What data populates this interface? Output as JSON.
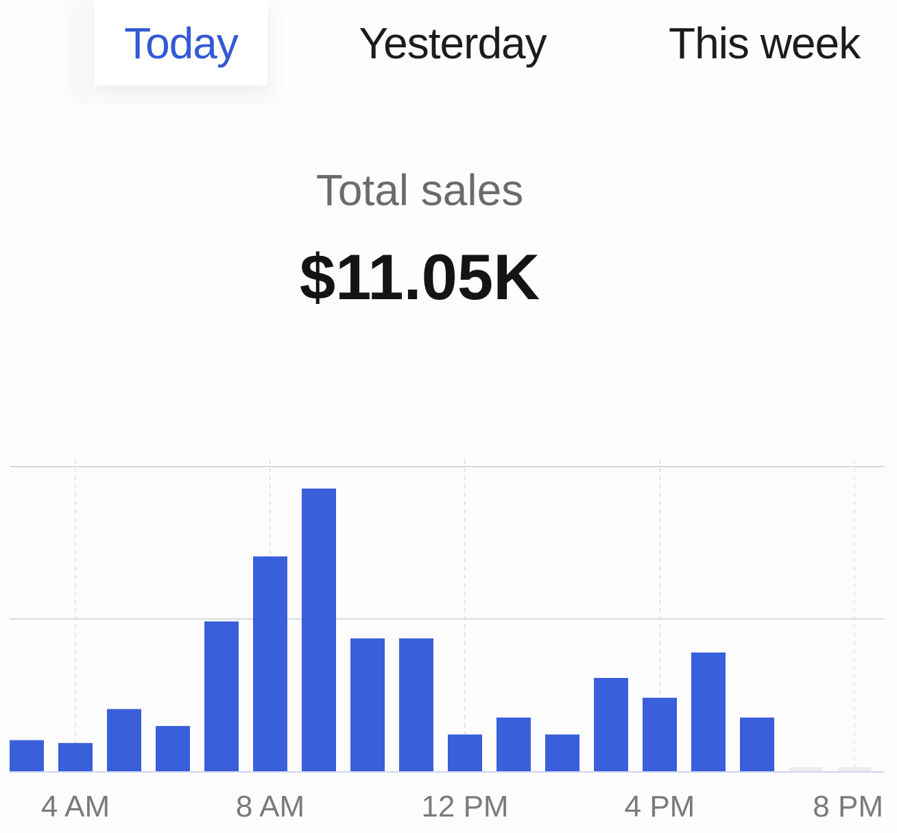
{
  "tabs": [
    {
      "label": "Today",
      "selected": true
    },
    {
      "label": "Yesterday",
      "selected": false
    },
    {
      "label": "This week",
      "selected": false
    }
  ],
  "summary": {
    "label": "Total sales",
    "value": "$11.05K"
  },
  "colors": {
    "accent": "#3359d4",
    "bar": "#3a5fdb",
    "gridline": "#d9d9d9"
  },
  "chart_data": {
    "type": "bar",
    "x_tick_labels": [
      "4 AM",
      "8 AM",
      "12 PM",
      "4 PM",
      "8 PM"
    ],
    "categories": [
      "3 AM",
      "4 AM",
      "5 AM",
      "6 AM",
      "7 AM",
      "8 AM",
      "9 AM",
      "10 AM",
      "11 AM",
      "12 PM",
      "1 PM",
      "2 PM",
      "3 PM",
      "4 PM",
      "5 PM",
      "6 PM",
      "7 PM",
      "8 PM"
    ],
    "values": [
      0.11,
      0.1,
      0.22,
      0.16,
      0.53,
      0.76,
      1.0,
      0.47,
      0.47,
      0.13,
      0.19,
      0.13,
      0.33,
      0.26,
      0.42,
      0.19,
      0,
      0
    ],
    "value_scale": "relative (no y-axis values printed)",
    "gridlines": "horizontal",
    "xlabel": "",
    "ylabel": ""
  }
}
